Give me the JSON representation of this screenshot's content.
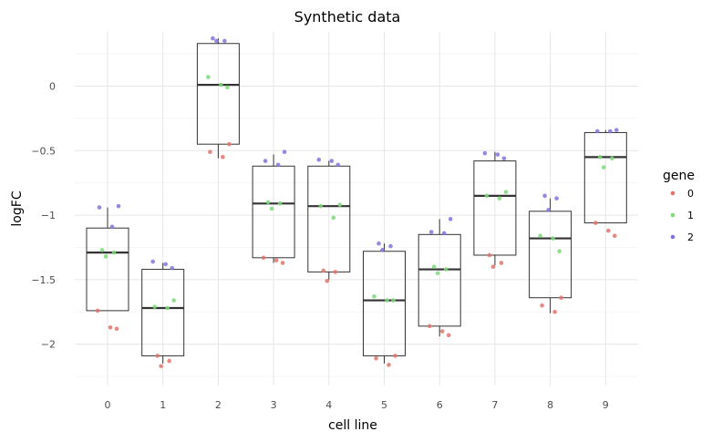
{
  "chart_data": {
    "type": "box",
    "title": "Synthetic data",
    "xlabel": "cell line",
    "ylabel": "logFC",
    "categories": [
      "0",
      "1",
      "2",
      "3",
      "4",
      "5",
      "6",
      "7",
      "8",
      "9"
    ],
    "ylim": [
      -2.32,
      0.42
    ],
    "yticks": [
      0,
      -0.5,
      -1,
      -1.5,
      -2
    ],
    "ytick_labels": [
      "0",
      "−0.5",
      "−1",
      "−1.5",
      "−2"
    ],
    "grid": true,
    "legend": {
      "title": "gene",
      "placement": "right",
      "entries": [
        {
          "label": "0",
          "color": "#e0746c"
        },
        {
          "label": "1",
          "color": "#7ed97a"
        },
        {
          "label": "2",
          "color": "#7f74dc"
        }
      ]
    },
    "boxes": [
      {
        "category": "0",
        "q1": -1.74,
        "median": -1.29,
        "q3": -1.1,
        "whisker_low": -1.74,
        "whisker_high": -0.94
      },
      {
        "category": "1",
        "q1": -2.09,
        "median": -1.72,
        "q3": -1.42,
        "whisker_low": -2.15,
        "whisker_high": -1.37
      },
      {
        "category": "2",
        "q1": -0.45,
        "median": 0.01,
        "q3": 0.33,
        "whisker_low": -0.56,
        "whisker_high": 0.37
      },
      {
        "category": "3",
        "q1": -1.33,
        "median": -0.91,
        "q3": -0.62,
        "whisker_low": -1.37,
        "whisker_high": -0.53
      },
      {
        "category": "4",
        "q1": -1.44,
        "median": -0.93,
        "q3": -0.62,
        "whisker_low": -1.5,
        "whisker_high": -0.58
      },
      {
        "category": "5",
        "q1": -2.09,
        "median": -1.66,
        "q3": -1.28,
        "whisker_low": -2.15,
        "whisker_high": -1.22
      },
      {
        "category": "6",
        "q1": -1.86,
        "median": -1.42,
        "q3": -1.15,
        "whisker_low": -1.94,
        "whisker_high": -1.03
      },
      {
        "category": "7",
        "q1": -1.31,
        "median": -0.85,
        "q3": -0.58,
        "whisker_low": -1.39,
        "whisker_high": -0.51
      },
      {
        "category": "8",
        "q1": -1.64,
        "median": -1.18,
        "q3": -0.97,
        "whisker_low": -1.76,
        "whisker_high": -0.87
      },
      {
        "category": "9",
        "q1": -1.06,
        "median": -0.55,
        "q3": -0.36,
        "whisker_low": -1.06,
        "whisker_high": -0.34
      }
    ],
    "series": [
      {
        "name": "0",
        "color": "#e0746c",
        "points": [
          {
            "x": 0,
            "y": -1.74
          },
          {
            "x": 0,
            "y": -1.87
          },
          {
            "x": 0,
            "y": -1.88
          },
          {
            "x": 1,
            "y": -2.09
          },
          {
            "x": 1,
            "y": -2.13
          },
          {
            "x": 1,
            "y": -2.17
          },
          {
            "x": 2,
            "y": -0.45
          },
          {
            "x": 2,
            "y": -0.51
          },
          {
            "x": 2,
            "y": -0.55
          },
          {
            "x": 3,
            "y": -1.33
          },
          {
            "x": 3,
            "y": -1.35
          },
          {
            "x": 3,
            "y": -1.37
          },
          {
            "x": 4,
            "y": -1.43
          },
          {
            "x": 4,
            "y": -1.44
          },
          {
            "x": 4,
            "y": -1.51
          },
          {
            "x": 5,
            "y": -2.09
          },
          {
            "x": 5,
            "y": -2.11
          },
          {
            "x": 5,
            "y": -2.16
          },
          {
            "x": 6,
            "y": -1.86
          },
          {
            "x": 6,
            "y": -1.9
          },
          {
            "x": 6,
            "y": -1.93
          },
          {
            "x": 7,
            "y": -1.31
          },
          {
            "x": 7,
            "y": -1.37
          },
          {
            "x": 7,
            "y": -1.4
          },
          {
            "x": 8,
            "y": -1.64
          },
          {
            "x": 8,
            "y": -1.7
          },
          {
            "x": 8,
            "y": -1.75
          },
          {
            "x": 9,
            "y": -1.06
          },
          {
            "x": 9,
            "y": -1.12
          },
          {
            "x": 9,
            "y": -1.16
          }
        ]
      },
      {
        "name": "1",
        "color": "#7ed97a",
        "points": [
          {
            "x": 0,
            "y": -1.27
          },
          {
            "x": 0,
            "y": -1.29
          },
          {
            "x": 0,
            "y": -1.32
          },
          {
            "x": 1,
            "y": -1.66
          },
          {
            "x": 1,
            "y": -1.71
          },
          {
            "x": 1,
            "y": -1.72
          },
          {
            "x": 2,
            "y": 0.07
          },
          {
            "x": 2,
            "y": 0.01
          },
          {
            "x": 2,
            "y": -0.01
          },
          {
            "x": 3,
            "y": -0.9
          },
          {
            "x": 3,
            "y": -0.91
          },
          {
            "x": 3,
            "y": -0.95
          },
          {
            "x": 4,
            "y": -0.92
          },
          {
            "x": 4,
            "y": -0.93
          },
          {
            "x": 4,
            "y": -1.02
          },
          {
            "x": 5,
            "y": -1.63
          },
          {
            "x": 5,
            "y": -1.66
          },
          {
            "x": 5,
            "y": -1.66
          },
          {
            "x": 6,
            "y": -1.4
          },
          {
            "x": 6,
            "y": -1.42
          },
          {
            "x": 6,
            "y": -1.45
          },
          {
            "x": 7,
            "y": -0.82
          },
          {
            "x": 7,
            "y": -0.85
          },
          {
            "x": 7,
            "y": -0.87
          },
          {
            "x": 8,
            "y": -1.16
          },
          {
            "x": 8,
            "y": -1.18
          },
          {
            "x": 8,
            "y": -1.28
          },
          {
            "x": 9,
            "y": -0.55
          },
          {
            "x": 9,
            "y": -0.56
          },
          {
            "x": 9,
            "y": -0.63
          }
        ]
      },
      {
        "name": "2",
        "color": "#7f74dc",
        "points": [
          {
            "x": 0,
            "y": -0.93
          },
          {
            "x": 0,
            "y": -0.94
          },
          {
            "x": 0,
            "y": -1.09
          },
          {
            "x": 1,
            "y": -1.36
          },
          {
            "x": 1,
            "y": -1.38
          },
          {
            "x": 1,
            "y": -1.41
          },
          {
            "x": 2,
            "y": 0.37
          },
          {
            "x": 2,
            "y": 0.35
          },
          {
            "x": 2,
            "y": 0.35
          },
          {
            "x": 3,
            "y": -0.51
          },
          {
            "x": 3,
            "y": -0.58
          },
          {
            "x": 3,
            "y": -0.61
          },
          {
            "x": 4,
            "y": -0.57
          },
          {
            "x": 4,
            "y": -0.58
          },
          {
            "x": 4,
            "y": -0.61
          },
          {
            "x": 5,
            "y": -1.22
          },
          {
            "x": 5,
            "y": -1.24
          },
          {
            "x": 5,
            "y": -1.27
          },
          {
            "x": 6,
            "y": -1.03
          },
          {
            "x": 6,
            "y": -1.13
          },
          {
            "x": 6,
            "y": -1.14
          },
          {
            "x": 7,
            "y": -0.52
          },
          {
            "x": 7,
            "y": -0.53
          },
          {
            "x": 7,
            "y": -0.56
          },
          {
            "x": 8,
            "y": -0.85
          },
          {
            "x": 8,
            "y": -0.87
          },
          {
            "x": 8,
            "y": -0.96
          },
          {
            "x": 9,
            "y": -0.34
          },
          {
            "x": 9,
            "y": -0.35
          },
          {
            "x": 9,
            "y": -0.35
          }
        ]
      }
    ]
  }
}
